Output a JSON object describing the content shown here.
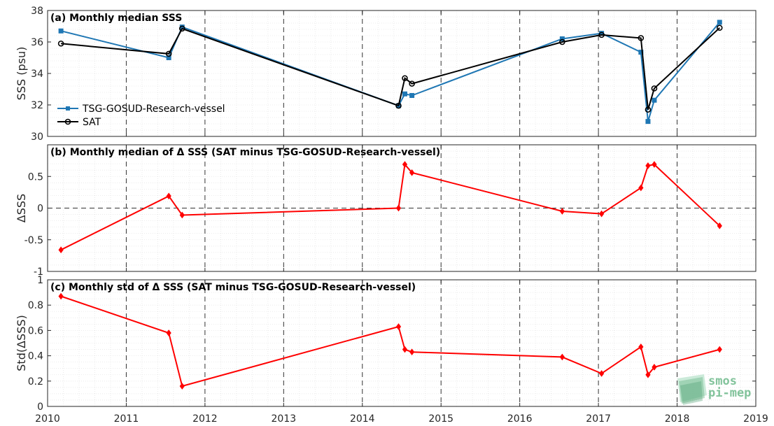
{
  "figure": {
    "x_tick_labels": [
      "2010",
      "2011",
      "2012",
      "2013",
      "2014",
      "2015",
      "2016",
      "2017",
      "2018",
      "2019"
    ],
    "logo": {
      "line1": "smos",
      "line2": "pi-mep",
      "color": "#6db98a"
    }
  },
  "chart_data": [
    {
      "type": "line",
      "title": "(a) Monthly median SSS",
      "ylabel": "SSS (psu)",
      "xlim": [
        2010,
        2019
      ],
      "ylim": [
        30,
        38
      ],
      "ytick_labels": [
        "30",
        "32",
        "34",
        "36",
        "38"
      ],
      "grid": true,
      "legend_position": "lower-left",
      "x": [
        2010.17,
        2011.54,
        2011.71,
        2014.46,
        2014.54,
        2014.63,
        2016.54,
        2017.04,
        2017.54,
        2017.63,
        2017.71,
        2018.54
      ],
      "series": [
        {
          "name": "TSG-GOSUD-Research-vessel",
          "color": "#1f77b4",
          "marker": "square",
          "values": [
            36.7,
            35.0,
            36.95,
            31.95,
            32.7,
            32.6,
            36.2,
            36.55,
            35.35,
            30.95,
            32.3,
            37.25
          ]
        },
        {
          "name": "SAT",
          "color": "#000000",
          "marker": "circle",
          "values": [
            35.9,
            35.25,
            36.85,
            31.95,
            33.7,
            33.35,
            36.0,
            36.45,
            36.25,
            31.7,
            33.05,
            36.9
          ]
        }
      ]
    },
    {
      "type": "line",
      "title": "(b) Monthly median of Δ SSS (SAT minus TSG-GOSUD-Research-vessel)",
      "ylabel": "ΔSSS",
      "xlim": [
        2010,
        2019
      ],
      "ylim": [
        -1,
        1
      ],
      "ytick_labels": [
        "-1",
        "-0.5",
        "0",
        "0.5"
      ],
      "grid": true,
      "zero_line": true,
      "x": [
        2010.17,
        2011.54,
        2011.71,
        2014.46,
        2014.54,
        2014.63,
        2016.54,
        2017.04,
        2017.54,
        2017.63,
        2017.71,
        2018.54
      ],
      "series": [
        {
          "color": "#ff0000",
          "values": [
            -0.66,
            0.19,
            -0.11,
            0.0,
            0.69,
            0.56,
            -0.05,
            -0.09,
            0.32,
            0.67,
            0.69,
            -0.28
          ]
        }
      ]
    },
    {
      "type": "line",
      "title": "(c) Monthly std of Δ SSS (SAT minus TSG-GOSUD-Research-vessel)",
      "ylabel": "Std(ΔSSS)",
      "xlim": [
        2010,
        2019
      ],
      "ylim": [
        0,
        1
      ],
      "ytick_labels": [
        "0",
        "0.2",
        "0.4",
        "0.6",
        "0.8",
        "1"
      ],
      "grid": true,
      "x": [
        2010.17,
        2011.54,
        2011.71,
        2014.46,
        2014.54,
        2014.63,
        2016.54,
        2017.04,
        2017.54,
        2017.63,
        2017.71,
        2018.54
      ],
      "series": [
        {
          "color": "#ff0000",
          "values": [
            0.87,
            0.58,
            0.16,
            0.63,
            0.45,
            0.43,
            0.39,
            0.26,
            0.47,
            0.25,
            0.31,
            0.45
          ]
        }
      ]
    }
  ]
}
